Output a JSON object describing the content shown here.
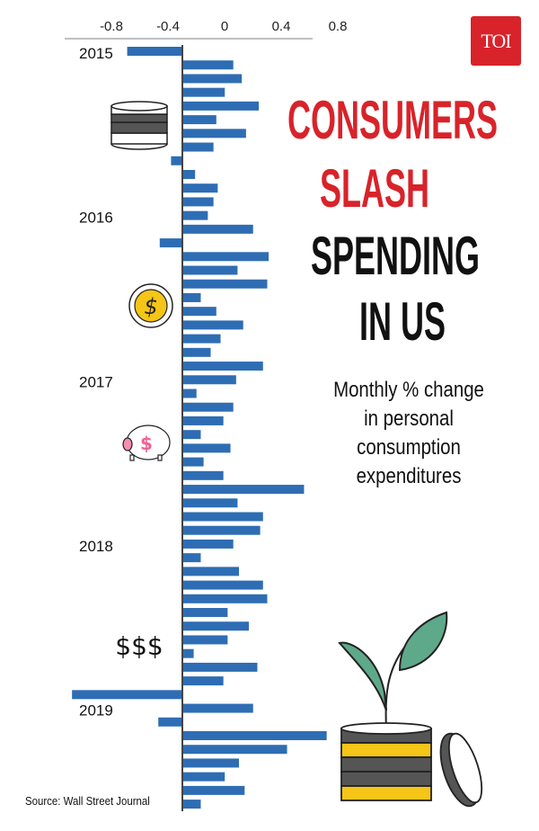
{
  "logo": {
    "text": "TOI",
    "color": "#d8232a"
  },
  "title": {
    "lines": [
      "CONSUMERS",
      "SLASH",
      "SPENDING",
      "IN US"
    ],
    "colors": [
      "#d8232a",
      "#d8232a",
      "#111111",
      "#111111"
    ]
  },
  "subtitle": [
    "Monthly % change",
    "in personal",
    "consumption",
    "expenditures"
  ],
  "source": "Source: Wall Street Journal",
  "illustrations": [
    "coin-stack-icon",
    "dollar-coin-icon",
    "piggy-bank-icon",
    "dollar-signs-icon",
    "plant-on-coins-icon"
  ],
  "dollar_signs": "$$$",
  "chart_data": {
    "type": "bar",
    "orientation": "horizontal",
    "bar_color": "#2e6db4",
    "x_ticks": [
      "-0.8",
      "-0.4",
      "0",
      "0.4",
      "0.8"
    ],
    "x_tick_values": [
      -0.8,
      -0.4,
      0,
      0.4,
      0.8
    ],
    "year_labels": [
      "2015",
      "2016",
      "2017",
      "2018",
      "2019"
    ],
    "first_month": "2015-01",
    "values": [
      -0.39,
      0.36,
      0.42,
      0.3,
      0.54,
      0.24,
      0.45,
      0.22,
      -0.08,
      0.09,
      0.25,
      0.22,
      0.18,
      0.5,
      -0.16,
      0.61,
      0.39,
      0.6,
      0.13,
      0.24,
      0.43,
      0.27,
      0.2,
      0.57,
      0.38,
      0.1,
      0.36,
      0.29,
      0.13,
      0.34,
      0.15,
      0.29,
      0.86,
      0.39,
      0.57,
      0.55,
      0.36,
      0.13,
      0.4,
      0.57,
      0.6,
      0.32,
      0.47,
      0.32,
      0.08,
      0.53,
      0.29,
      -0.78,
      0.5,
      -0.17,
      1.02,
      0.74,
      0.4,
      0.3,
      0.44,
      0.13
    ],
    "grid": false
  }
}
